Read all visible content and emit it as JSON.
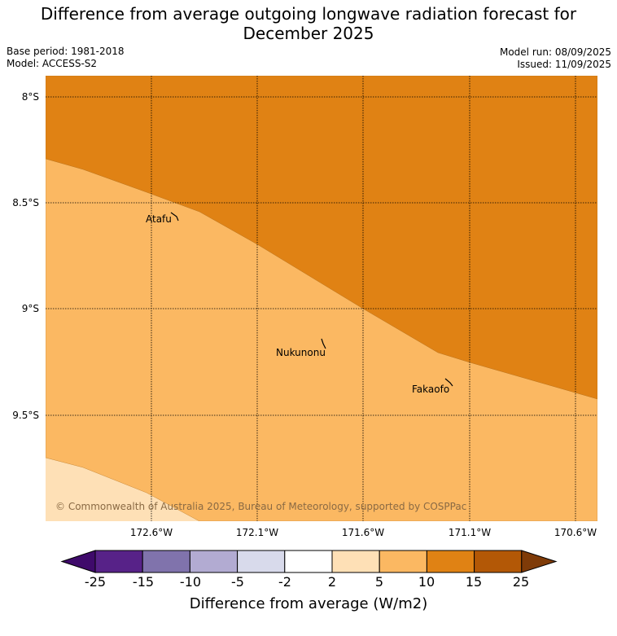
{
  "title_line1": "Difference from average outgoing longwave radiation forecast for",
  "title_line2": "December 2025",
  "base_period": "Base period: 1981-2018",
  "model": "Model: ACCESS-S2",
  "model_run": "Model run: 08/09/2025",
  "issued": "Issued: 11/09/2025",
  "lat_labels": [
    "8°S",
    "8.5°S",
    "9°S",
    "9.5°S"
  ],
  "lon_labels": [
    "172.6°W",
    "172.1°W",
    "171.6°W",
    "171.1°W",
    "170.6°W"
  ],
  "places": [
    "Atafu",
    "Nukunonu",
    "Fakaofo"
  ],
  "copyright": "© Commonwealth of Australia 2025, Bureau of Meteorology, supported by COSPPac",
  "colorbar": {
    "label": "Difference from average (W/m2)",
    "ticks": [
      "-25",
      "-15",
      "-10",
      "-5",
      "-2",
      "2",
      "5",
      "10",
      "15",
      "25"
    ],
    "colors": [
      "#3f0a6b",
      "#572288",
      "#8073ac",
      "#b2abd2",
      "#d8daeb",
      "#ffffff",
      "#fee0b6",
      "#fbb862",
      "#e08214",
      "#b35806",
      "#7f3b08"
    ]
  },
  "map_colors": {
    "band_2_5": "#fee0b6",
    "band_5_10": "#fbb862",
    "band_10_15": "#e08214"
  }
}
